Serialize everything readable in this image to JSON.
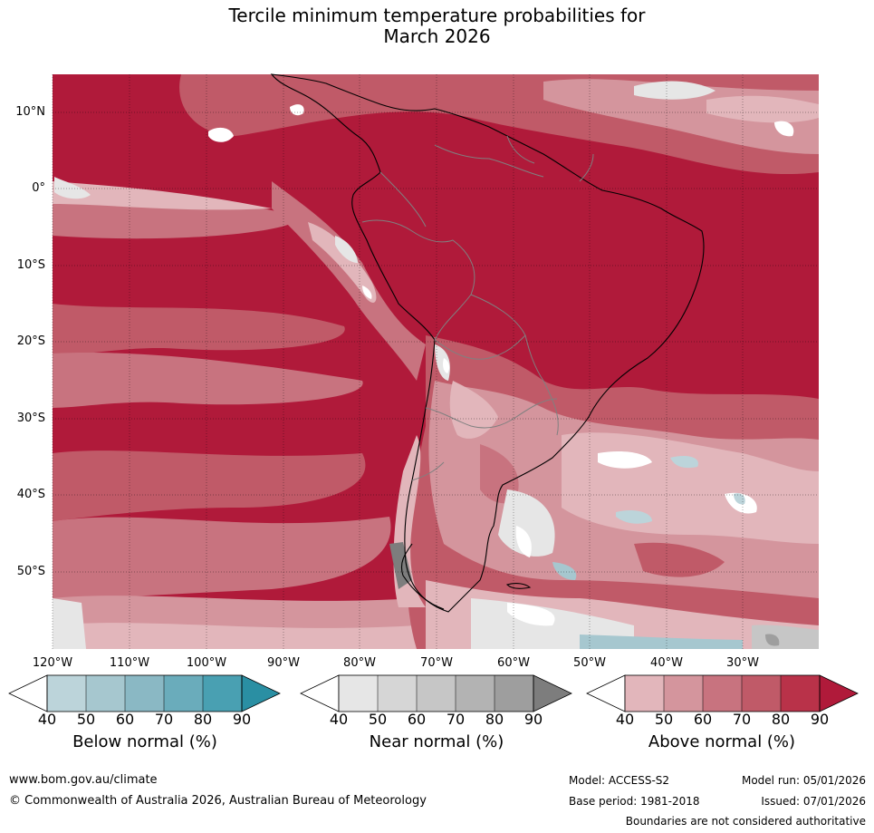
{
  "title": {
    "line1": "Tercile minimum temperature probabilities for",
    "line2": "March 2026"
  },
  "axes": {
    "latitudes": [
      "10°N",
      "0°",
      "10°S",
      "20°S",
      "30°S",
      "40°S",
      "50°S"
    ],
    "longitudes": [
      "120°W",
      "110°W",
      "100°W",
      "90°W",
      "80°W",
      "70°W",
      "60°W",
      "50°W",
      "40°W",
      "30°W"
    ]
  },
  "legend": {
    "ticks": [
      "40",
      "50",
      "60",
      "70",
      "80",
      "90"
    ],
    "below": {
      "label": "Below normal (%)",
      "colors": [
        "#ffffff",
        "#bcd4da",
        "#a6c7cf",
        "#8ab8c4",
        "#6aacbb",
        "#49a0b2",
        "#2a8fa3"
      ]
    },
    "near": {
      "label": "Near normal (%)",
      "colors": [
        "#ffffff",
        "#e6e6e6",
        "#d6d6d6",
        "#c6c6c6",
        "#b3b3b3",
        "#9e9e9e",
        "#7d7d7d"
      ]
    },
    "above": {
      "label": "Above normal (%)",
      "colors": [
        "#ffffff",
        "#e2b6bb",
        "#d4959d",
        "#c8737f",
        "#c05a68",
        "#b93249",
        "#b01a3a"
      ]
    }
  },
  "footer": {
    "site": "www.bom.gov.au/climate",
    "copyright": "© Commonwealth of Australia 2026, Australian Bureau of Meteorology",
    "model": "Model: ACCESS-S2",
    "base_period": "Base period: 1981-2018",
    "model_run": "Model run: 05/01/2026",
    "issued": "Issued: 07/01/2026",
    "disclaimer": "Boundaries are not considered authoritative"
  }
}
